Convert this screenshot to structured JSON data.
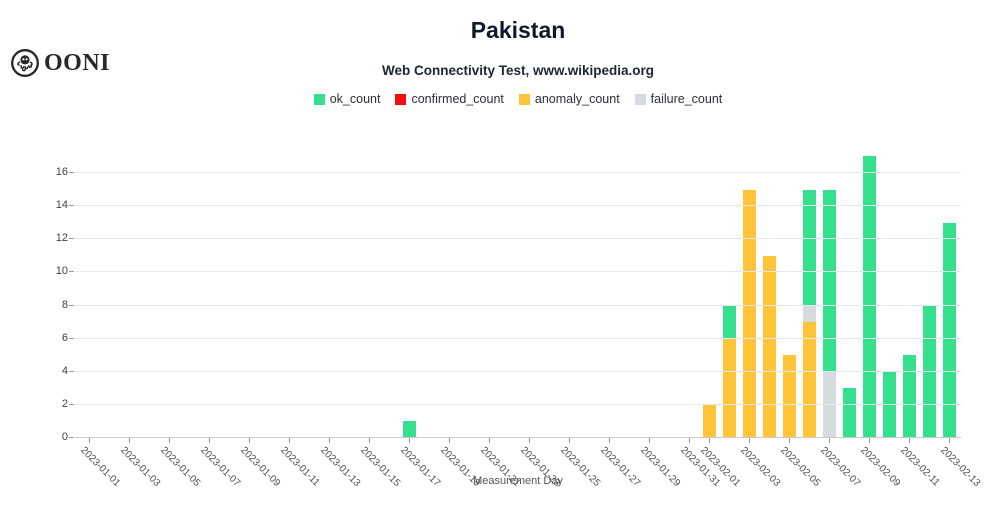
{
  "logo": {
    "text": "OONI",
    "icon": "ooni-octopus-logo",
    "color": "#26282c"
  },
  "header": {
    "title": "Pakistan",
    "subtitle": "Web Connectivity Test, www.wikipedia.org"
  },
  "legend": {
    "position": "top",
    "items": [
      {
        "label": "ok_count",
        "color": "#34e08c"
      },
      {
        "label": "confirmed_count",
        "color": "#f50e0e"
      },
      {
        "label": "anomaly_count",
        "color": "#ffc438"
      },
      {
        "label": "failure_count",
        "color": "#d6dae1"
      }
    ]
  },
  "chart_data": {
    "type": "bar",
    "stacked": true,
    "title": "Pakistan",
    "subtitle": "Web Connectivity Test, www.wikipedia.org",
    "xlabel": "Measurement Day",
    "ylabel": "",
    "ylim": [
      0,
      17.4
    ],
    "yticks": [
      0,
      2,
      4,
      6,
      8,
      10,
      12,
      14,
      16
    ],
    "grid": "horizontal",
    "legend_position": "top-center",
    "date_range": [
      "2023-01-01",
      "2023-02-13"
    ],
    "x_tick_labels": [
      "2023-01-01",
      "2023-01-03",
      "2023-01-05",
      "2023-01-07",
      "2023-01-09",
      "2023-01-11",
      "2023-01-13",
      "2023-01-15",
      "2023-01-17",
      "2023-01-19",
      "2023-01-21",
      "2023-01-23",
      "2023-01-25",
      "2023-01-27",
      "2023-01-29",
      "2023-01-31",
      "2023-02-01",
      "2023-02-03",
      "2023-02-05",
      "2023-02-07",
      "2023-02-09",
      "2023-02-11",
      "2023-02-13"
    ],
    "series_order_bottom_to_top": [
      "confirmed_count",
      "anomaly_count",
      "failure_count",
      "ok_count"
    ],
    "series_colors": {
      "ok_count": "#34e08c",
      "confirmed_count": "#f50e0e",
      "anomaly_count": "#ffc438",
      "failure_count": "#d6dae1"
    },
    "bars": [
      {
        "date": "2023-01-17",
        "ok_count": 1,
        "confirmed_count": 0,
        "anomaly_count": 0,
        "failure_count": 0
      },
      {
        "date": "2023-02-01",
        "ok_count": 0,
        "confirmed_count": 0,
        "anomaly_count": 2,
        "failure_count": 0
      },
      {
        "date": "2023-02-02",
        "ok_count": 2,
        "confirmed_count": 0,
        "anomaly_count": 6,
        "failure_count": 0
      },
      {
        "date": "2023-02-03",
        "ok_count": 0,
        "confirmed_count": 0,
        "anomaly_count": 15,
        "failure_count": 0
      },
      {
        "date": "2023-02-04",
        "ok_count": 0,
        "confirmed_count": 0,
        "anomaly_count": 11,
        "failure_count": 0
      },
      {
        "date": "2023-02-05",
        "ok_count": 0,
        "confirmed_count": 0,
        "anomaly_count": 5,
        "failure_count": 0
      },
      {
        "date": "2023-02-06",
        "ok_count": 7,
        "confirmed_count": 0,
        "anomaly_count": 7,
        "failure_count": 1
      },
      {
        "date": "2023-02-07",
        "ok_count": 11,
        "confirmed_count": 0,
        "anomaly_count": 0,
        "failure_count": 4
      },
      {
        "date": "2023-02-08",
        "ok_count": 3,
        "confirmed_count": 0,
        "anomaly_count": 0,
        "failure_count": 0
      },
      {
        "date": "2023-02-09",
        "ok_count": 17,
        "confirmed_count": 0,
        "anomaly_count": 0,
        "failure_count": 0
      },
      {
        "date": "2023-02-10",
        "ok_count": 4,
        "confirmed_count": 0,
        "anomaly_count": 0,
        "failure_count": 0
      },
      {
        "date": "2023-02-11",
        "ok_count": 5,
        "confirmed_count": 0,
        "anomaly_count": 0,
        "failure_count": 0
      },
      {
        "date": "2023-02-12",
        "ok_count": 8,
        "confirmed_count": 0,
        "anomaly_count": 0,
        "failure_count": 0
      },
      {
        "date": "2023-02-13",
        "ok_count": 13,
        "confirmed_count": 0,
        "anomaly_count": 0,
        "failure_count": 0
      }
    ]
  }
}
